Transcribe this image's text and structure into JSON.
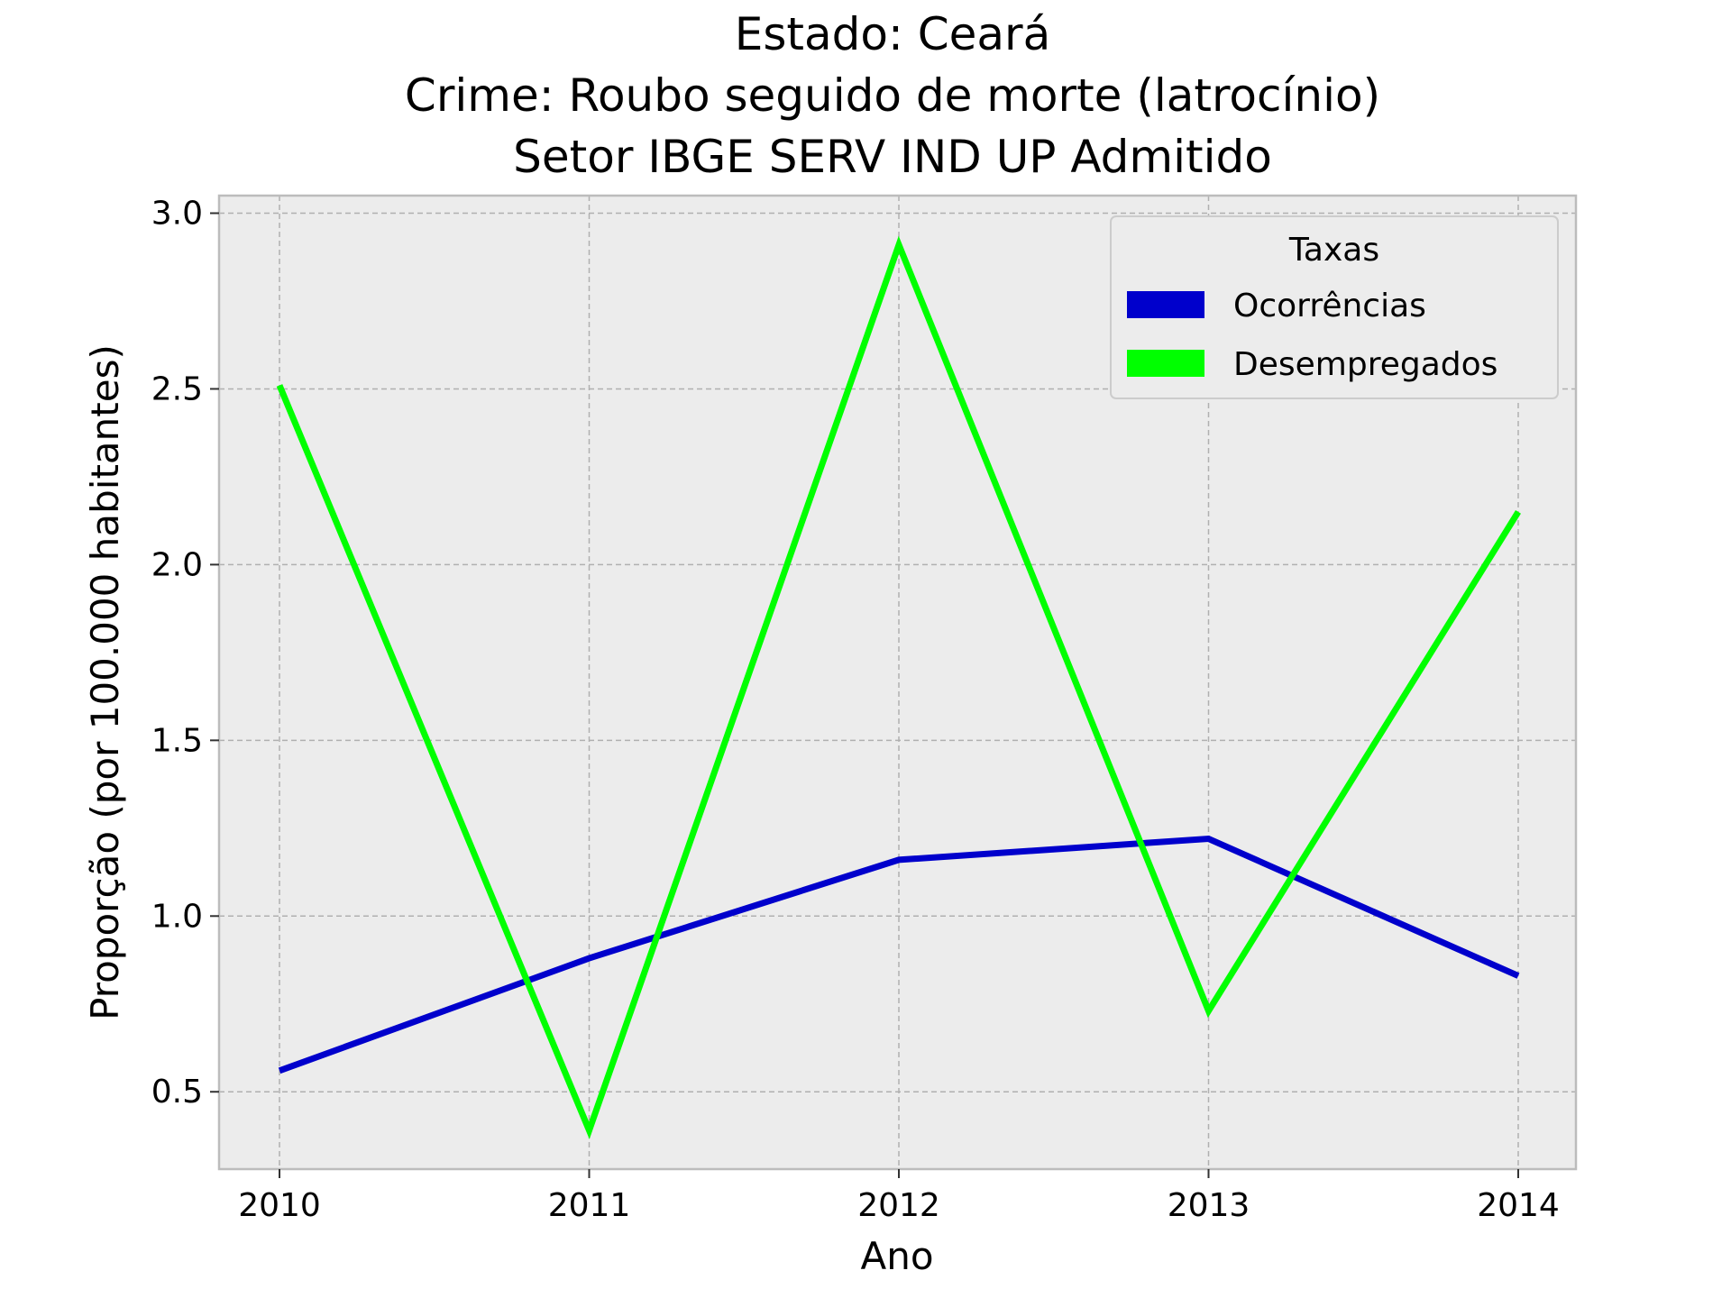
{
  "chart_data": {
    "type": "line",
    "title_lines": [
      "Estado: Ceará",
      "Crime: Roubo seguido de morte (latrocínio)",
      "Setor IBGE  SERV IND UP   Admitido"
    ],
    "xlabel": "Ano",
    "ylabel": "Proporção (por 100.000 habitantes)",
    "categories": [
      "2010",
      "2011",
      "2012",
      "2013",
      "2014"
    ],
    "y_ticks": [
      "0.5",
      "1.0",
      "1.5",
      "2.0",
      "2.5",
      "3.0"
    ],
    "ylim": [
      0.28,
      3.05
    ],
    "grid": true,
    "legend": {
      "title": "Taxas",
      "position": "top-right"
    },
    "series": [
      {
        "name": "Ocorrências",
        "color": "#0000cc",
        "values": [
          0.56,
          0.88,
          1.16,
          1.22,
          0.83
        ]
      },
      {
        "name": "Desempregados",
        "color": "#00ff00",
        "values": [
          2.51,
          0.39,
          2.91,
          0.73,
          2.15
        ]
      }
    ],
    "colors": {
      "plot_background": "#ececec",
      "frame": "#bcbcbc"
    }
  }
}
